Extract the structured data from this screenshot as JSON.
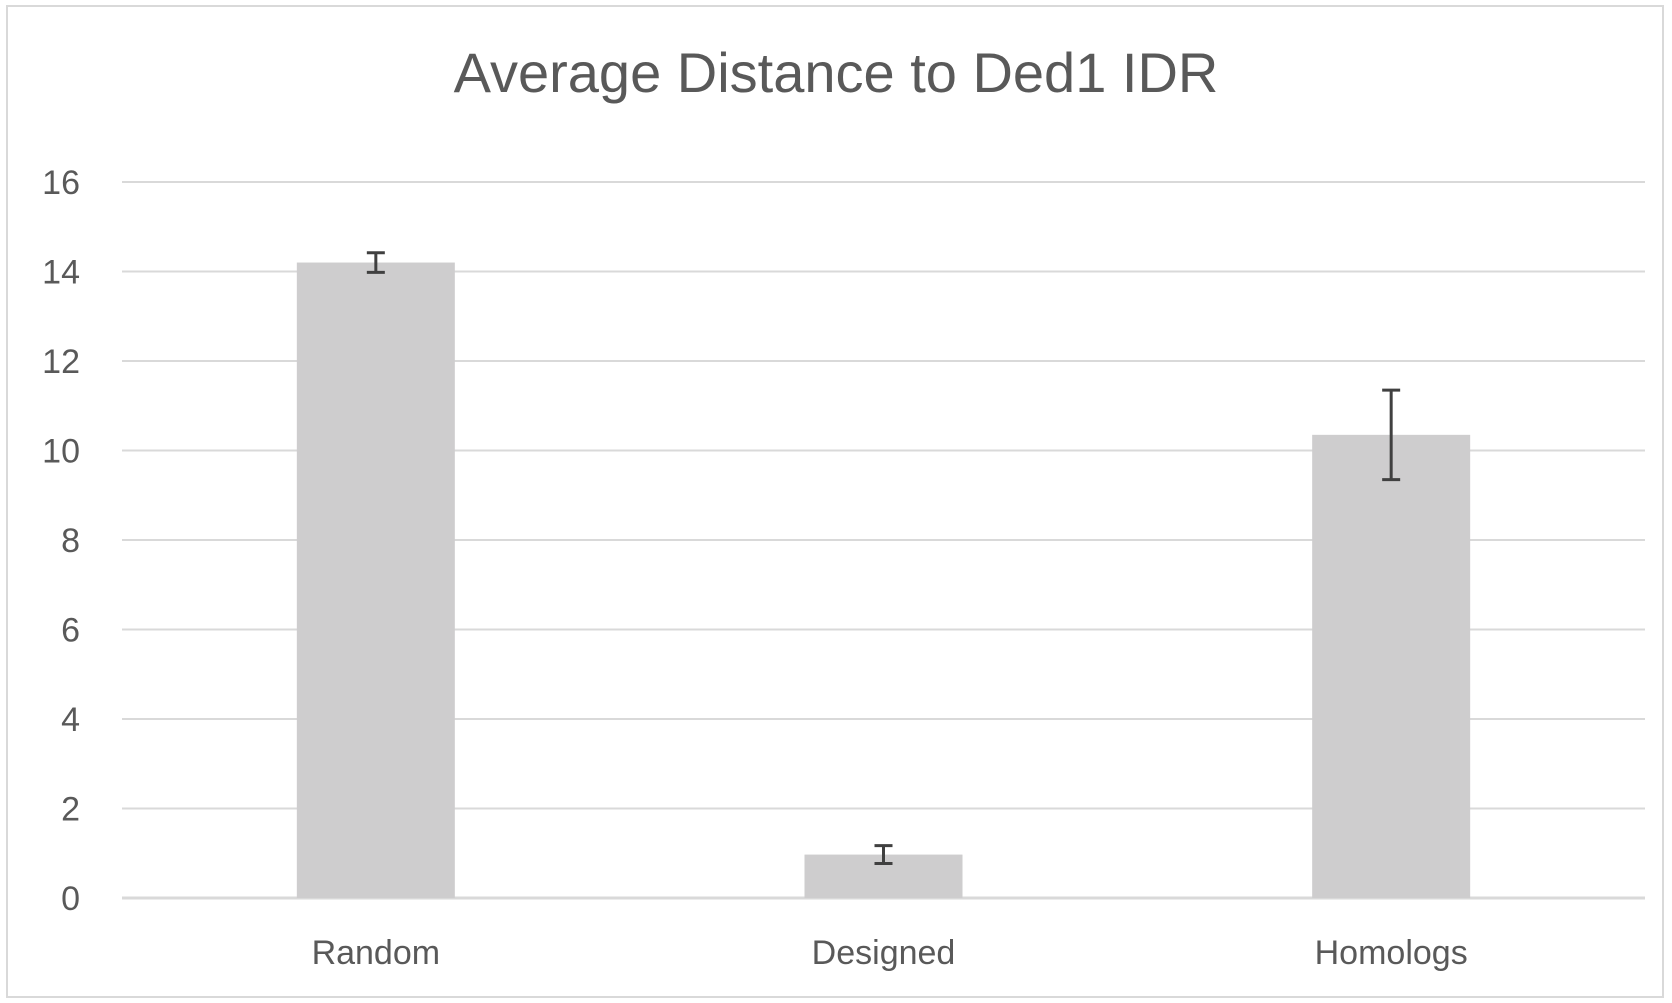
{
  "chart_data": {
    "type": "bar",
    "title": "Average Distance to Ded1 IDR",
    "xlabel": "",
    "ylabel": "",
    "categories": [
      "Random",
      "Designed",
      "Homologs"
    ],
    "values": [
      14.2,
      0.97,
      10.35
    ],
    "error": [
      0.22,
      0.2,
      1.0
    ],
    "ylim": [
      0,
      16
    ],
    "yticks": [
      0,
      2,
      4,
      6,
      8,
      10,
      12,
      14,
      16
    ],
    "grid": true,
    "legend": "none",
    "colors": {
      "bar": "#cecdce",
      "grid": "#d9d9d9",
      "text": "#595959",
      "error_bar": "#404040"
    }
  }
}
